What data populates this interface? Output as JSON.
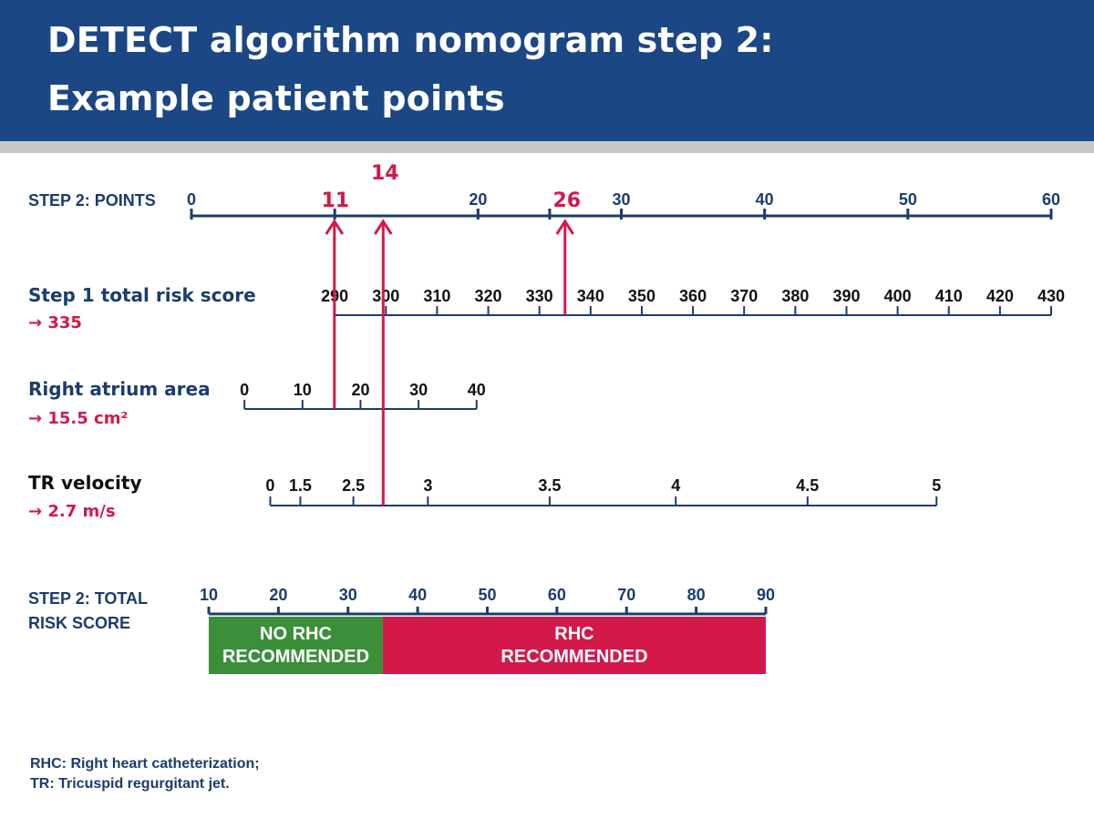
{
  "title": {
    "line1": "DETECT algorithm nomogram step 2:",
    "line2": "Example patient points"
  },
  "colors": {
    "navy": "#1b4785",
    "axis": "#1b3c6e",
    "accent": "#d2194a",
    "green": "#3b8f3a",
    "tick_text": "#111111"
  },
  "points_axis": {
    "label": "STEP 2: POINTS",
    "min": 0,
    "max": 60,
    "ticks": [
      {
        "v": 0,
        "label": "0"
      },
      {
        "v": 20,
        "label": "20"
      },
      {
        "v": 30,
        "label": "30"
      },
      {
        "v": 40,
        "label": "40"
      },
      {
        "v": 50,
        "label": "50"
      },
      {
        "v": 60,
        "label": "60"
      }
    ],
    "minor_ticks": [
      10,
      25
    ]
  },
  "variables": [
    {
      "id": "risk",
      "label": "Step 1 total risk score",
      "value": "→ 335",
      "min": 290,
      "max": 430,
      "points_min": 10,
      "points_max": 60,
      "ticks": [
        "290",
        "300",
        "310",
        "320",
        "330",
        "340",
        "350",
        "360",
        "370",
        "380",
        "390",
        "400",
        "410",
        "420",
        "430"
      ],
      "tick_values": [
        290,
        300,
        310,
        320,
        330,
        340,
        350,
        360,
        370,
        380,
        390,
        400,
        410,
        420,
        430
      ]
    },
    {
      "id": "ra",
      "label": "Right atrium area",
      "value": "→ 15.5 cm²",
      "min": 0,
      "max": 40,
      "points_min": 3.7,
      "points_max": 19.9,
      "ticks": [
        "0",
        "10",
        "20",
        "30",
        "40"
      ],
      "tick_values": [
        0,
        10,
        20,
        30,
        40
      ]
    },
    {
      "id": "tr",
      "label": "TR velocity",
      "value": "→ 2.7 m/s",
      "min": 0,
      "max": 5,
      "points_min": 5.5,
      "points_max": 52,
      "ticks": [
        "0",
        "1.5",
        "2.5",
        "3",
        "3.5",
        "4",
        "4.5",
        "5"
      ],
      "tick_values": [
        0,
        1.5,
        2.5,
        3,
        3.5,
        4,
        4.5,
        5
      ],
      "piecewise": [
        [
          0,
          5.5
        ],
        [
          1.5,
          7.6
        ],
        [
          2.5,
          11.3
        ],
        [
          3,
          16.5
        ],
        [
          3.5,
          25
        ],
        [
          4,
          33.8
        ],
        [
          4.5,
          43
        ],
        [
          5,
          52
        ]
      ]
    }
  ],
  "patient": {
    "risk_value": 335,
    "risk_points": "26",
    "ra_value": 15.5,
    "ra_points": "11",
    "tr_value": 2.7,
    "tr_points": "14"
  },
  "total_axis": {
    "label_line1": "STEP 2: TOTAL",
    "label_line2": "RISK SCORE",
    "min": 10,
    "max": 90,
    "ticks": [
      {
        "v": 10,
        "label": "10"
      },
      {
        "v": 20,
        "label": "20"
      },
      {
        "v": 30,
        "label": "30"
      },
      {
        "v": 40,
        "label": "40"
      },
      {
        "v": 50,
        "label": "50"
      },
      {
        "v": 60,
        "label": "60"
      },
      {
        "v": 70,
        "label": "70"
      },
      {
        "v": 80,
        "label": "80"
      },
      {
        "v": 90,
        "label": "90"
      }
    ],
    "threshold": 35,
    "no_rhc_line1": "NO RHC",
    "no_rhc_line2": "RECOMMENDED",
    "rhc_line1": "RHC",
    "rhc_line2": "RECOMMENDED"
  },
  "footnote": {
    "line1": "RHC: Right heart catheterization;",
    "line2": "TR: Tricuspid regurgitant jet."
  }
}
